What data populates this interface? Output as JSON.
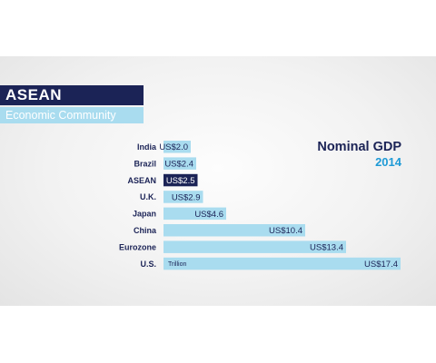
{
  "brand": {
    "title": "ASEAN",
    "subtitle": "Economic Community"
  },
  "colors": {
    "navy": "#1b2356",
    "bar": "#a9dcef",
    "highlight": "#1b2356",
    "year": "#1e9ad6"
  },
  "chart_data": {
    "type": "bar",
    "orientation": "horizontal",
    "title": "Nominal GDP",
    "subtitle": "2014",
    "unit": "Trillion",
    "categories": [
      "India",
      "Brazil",
      "ASEAN",
      "U.K.",
      "Japan",
      "China",
      "Eurozone",
      "U.S."
    ],
    "values": [
      2.0,
      2.4,
      2.5,
      2.9,
      4.6,
      10.4,
      13.4,
      17.4
    ],
    "value_labels": [
      "US$2.0",
      "US$2.4",
      "US$2.5",
      "US$2.9",
      "US$4.6",
      "US$10.4",
      "US$13.4",
      "US$17.4"
    ],
    "highlight": "ASEAN",
    "xlim": [
      0,
      17.4
    ],
    "grid": false,
    "legend": "none"
  }
}
